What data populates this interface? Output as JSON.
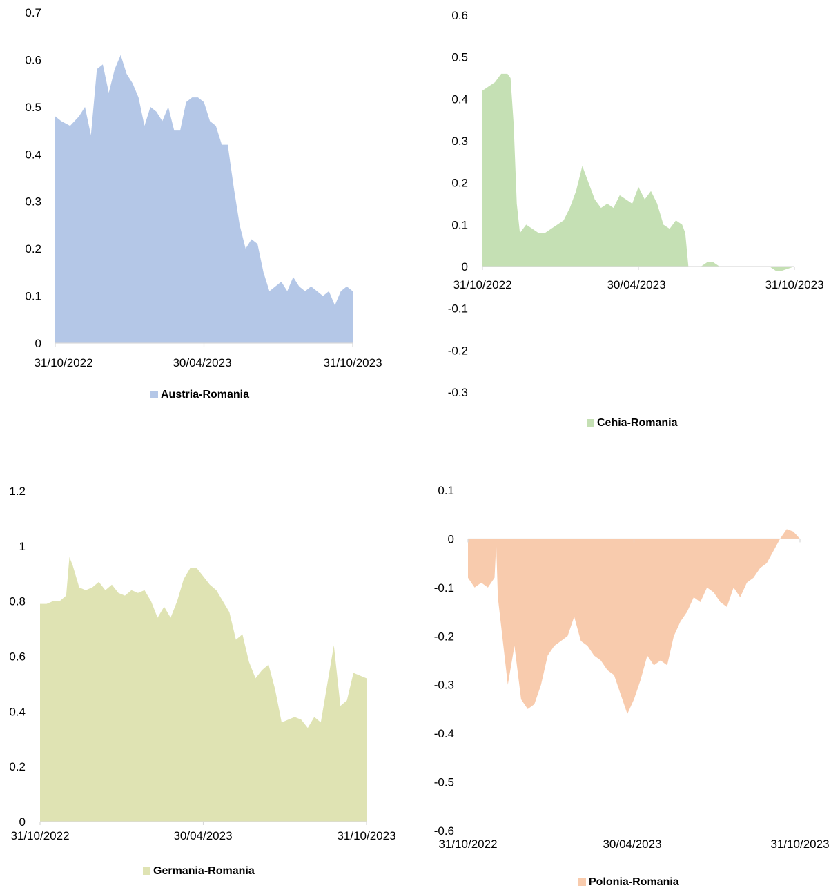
{
  "charts": [
    {
      "type": "area",
      "legend": "Austria-Romania",
      "color": "#b4c7e7",
      "yticks": [
        "0.7",
        "0.6",
        "0.5",
        "0.4",
        "0.3",
        "0.2",
        "0.1",
        "0"
      ],
      "xticks": [
        "31/10/2022",
        "30/04/2023",
        "31/10/2023"
      ]
    },
    {
      "type": "area",
      "legend": "Cehia-Romania",
      "color": "#c5e0b4",
      "yticks": [
        "0.6",
        "0.5",
        "0.4",
        "0.3",
        "0.2",
        "0.1",
        "0",
        "-0.1",
        "-0.2",
        "-0.3"
      ],
      "xticks": [
        "31/10/2022",
        "30/04/2023",
        "31/10/2023"
      ]
    },
    {
      "type": "area",
      "legend": "Germania-Romania",
      "color": "#dfe3b3",
      "yticks": [
        "1.2",
        "1",
        "0.8",
        "0.6",
        "0.4",
        "0.2",
        "0"
      ],
      "xticks": [
        "31/10/2022",
        "30/04/2023",
        "31/10/2023"
      ]
    },
    {
      "type": "area",
      "legend": "Polonia-Romania",
      "color": "#f8cbad",
      "yticks": [
        "0.1",
        "0",
        "-0.1",
        "-0.2",
        "-0.3",
        "-0.4",
        "-0.5",
        "-0.6"
      ],
      "xticks": [
        "31/10/2022",
        "30/04/2023",
        "31/10/2023"
      ]
    }
  ],
  "chart_data": [
    {
      "type": "area",
      "series": [
        {
          "name": "Austria-Romania",
          "color": "#b4c7e7"
        }
      ],
      "xlim": [
        "31/10/2022",
        "31/10/2023"
      ],
      "ylim": [
        0,
        0.7
      ],
      "x": [
        0,
        0.02,
        0.05,
        0.08,
        0.1,
        0.12,
        0.14,
        0.16,
        0.18,
        0.2,
        0.22,
        0.24,
        0.26,
        0.28,
        0.3,
        0.32,
        0.34,
        0.36,
        0.38,
        0.4,
        0.42,
        0.44,
        0.46,
        0.48,
        0.5,
        0.52,
        0.54,
        0.56,
        0.58,
        0.6,
        0.62,
        0.64,
        0.66,
        0.68,
        0.7,
        0.72,
        0.74,
        0.76,
        0.78,
        0.8,
        0.82,
        0.84,
        0.86,
        0.88,
        0.9,
        0.92,
        0.94,
        0.96,
        0.98,
        1.0
      ],
      "y": [
        0.48,
        0.47,
        0.46,
        0.48,
        0.5,
        0.44,
        0.58,
        0.59,
        0.53,
        0.58,
        0.61,
        0.57,
        0.55,
        0.52,
        0.46,
        0.5,
        0.49,
        0.47,
        0.5,
        0.45,
        0.45,
        0.51,
        0.52,
        0.52,
        0.51,
        0.47,
        0.46,
        0.42,
        0.42,
        0.33,
        0.25,
        0.2,
        0.22,
        0.21,
        0.15,
        0.11,
        0.12,
        0.13,
        0.11,
        0.14,
        0.12,
        0.11,
        0.12,
        0.11,
        0.1,
        0.11,
        0.08,
        0.11,
        0.12,
        0.11
      ]
    },
    {
      "type": "area",
      "series": [
        {
          "name": "Cehia-Romania",
          "color": "#c5e0b4"
        }
      ],
      "xlim": [
        "31/10/2022",
        "31/10/2023"
      ],
      "ylim": [
        -0.3,
        0.6
      ],
      "x": [
        0,
        0.02,
        0.04,
        0.06,
        0.08,
        0.09,
        0.1,
        0.11,
        0.12,
        0.14,
        0.16,
        0.18,
        0.2,
        0.22,
        0.24,
        0.26,
        0.28,
        0.3,
        0.32,
        0.34,
        0.36,
        0.38,
        0.4,
        0.42,
        0.44,
        0.46,
        0.48,
        0.5,
        0.52,
        0.54,
        0.56,
        0.58,
        0.6,
        0.62,
        0.64,
        0.65,
        0.66,
        0.7,
        0.72,
        0.74,
        0.76,
        0.78,
        0.8,
        0.85,
        0.9,
        0.92,
        0.94,
        0.96,
        0.98,
        1.0
      ],
      "y": [
        0.42,
        0.43,
        0.44,
        0.46,
        0.46,
        0.45,
        0.34,
        0.15,
        0.08,
        0.1,
        0.09,
        0.08,
        0.08,
        0.09,
        0.1,
        0.11,
        0.14,
        0.18,
        0.24,
        0.2,
        0.16,
        0.14,
        0.15,
        0.14,
        0.17,
        0.16,
        0.15,
        0.19,
        0.16,
        0.18,
        0.15,
        0.1,
        0.09,
        0.11,
        0.1,
        0.08,
        0.0,
        0.0,
        0.01,
        0.01,
        0.0,
        0.0,
        0.0,
        0.0,
        0.0,
        0.0,
        -0.01,
        -0.01,
        -0.005,
        0.0
      ]
    },
    {
      "type": "area",
      "series": [
        {
          "name": "Germania-Romania",
          "color": "#dfe3b3"
        }
      ],
      "xlim": [
        "31/10/2022",
        "31/10/2023"
      ],
      "ylim": [
        0,
        1.2
      ],
      "x": [
        0,
        0.02,
        0.04,
        0.06,
        0.08,
        0.09,
        0.1,
        0.12,
        0.14,
        0.16,
        0.18,
        0.2,
        0.22,
        0.24,
        0.26,
        0.28,
        0.3,
        0.32,
        0.34,
        0.36,
        0.38,
        0.4,
        0.42,
        0.44,
        0.46,
        0.48,
        0.5,
        0.52,
        0.54,
        0.56,
        0.58,
        0.6,
        0.62,
        0.64,
        0.66,
        0.68,
        0.7,
        0.72,
        0.74,
        0.76,
        0.78,
        0.8,
        0.82,
        0.84,
        0.86,
        0.88,
        0.9,
        0.92,
        0.94,
        0.96,
        1.0
      ],
      "y": [
        0.79,
        0.79,
        0.8,
        0.8,
        0.82,
        0.96,
        0.93,
        0.85,
        0.84,
        0.85,
        0.87,
        0.84,
        0.86,
        0.83,
        0.82,
        0.84,
        0.83,
        0.84,
        0.8,
        0.74,
        0.78,
        0.74,
        0.8,
        0.88,
        0.92,
        0.92,
        0.89,
        0.86,
        0.84,
        0.8,
        0.76,
        0.66,
        0.68,
        0.58,
        0.52,
        0.55,
        0.57,
        0.48,
        0.36,
        0.37,
        0.38,
        0.37,
        0.34,
        0.38,
        0.36,
        0.5,
        0.64,
        0.42,
        0.44,
        0.54,
        0.52
      ]
    },
    {
      "type": "area",
      "series": [
        {
          "name": "Polonia-Romania",
          "color": "#f8cbad"
        }
      ],
      "xlim": [
        "31/10/2022",
        "31/10/2023"
      ],
      "ylim": [
        -0.6,
        0.1
      ],
      "x": [
        0,
        0.02,
        0.04,
        0.06,
        0.08,
        0.085,
        0.09,
        0.1,
        0.12,
        0.14,
        0.16,
        0.18,
        0.2,
        0.22,
        0.24,
        0.26,
        0.28,
        0.3,
        0.32,
        0.34,
        0.36,
        0.38,
        0.4,
        0.42,
        0.44,
        0.46,
        0.48,
        0.5,
        0.52,
        0.54,
        0.56,
        0.58,
        0.6,
        0.62,
        0.64,
        0.66,
        0.68,
        0.7,
        0.72,
        0.74,
        0.76,
        0.78,
        0.8,
        0.82,
        0.84,
        0.86,
        0.88,
        0.9,
        0.94,
        0.96,
        0.98,
        1.0
      ],
      "y": [
        -0.08,
        -0.1,
        -0.09,
        -0.1,
        -0.08,
        -0.01,
        -0.12,
        -0.18,
        -0.3,
        -0.22,
        -0.33,
        -0.35,
        -0.34,
        -0.3,
        -0.24,
        -0.22,
        -0.21,
        -0.2,
        -0.16,
        -0.21,
        -0.22,
        -0.24,
        -0.25,
        -0.27,
        -0.28,
        -0.32,
        -0.36,
        -0.33,
        -0.29,
        -0.24,
        -0.26,
        -0.25,
        -0.26,
        -0.2,
        -0.17,
        -0.15,
        -0.12,
        -0.13,
        -0.1,
        -0.11,
        -0.13,
        -0.14,
        -0.1,
        -0.12,
        -0.09,
        -0.08,
        -0.06,
        -0.05,
        -0.0,
        0.02,
        0.015,
        0.0
      ]
    }
  ]
}
